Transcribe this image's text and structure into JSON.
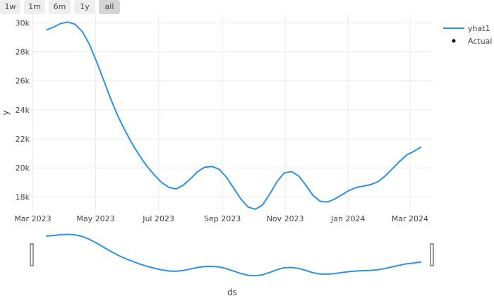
{
  "range_selector": {
    "buttons": [
      {
        "label": "1w",
        "active": false
      },
      {
        "label": "1m",
        "active": false
      },
      {
        "label": "6m",
        "active": false
      },
      {
        "label": "1y",
        "active": false
      },
      {
        "label": "all",
        "active": true
      }
    ]
  },
  "chart_data": {
    "type": "line",
    "title": "",
    "xlabel": "ds",
    "ylabel": "y",
    "x_range": [
      "2023-02-28",
      "2024-03-23"
    ],
    "ylim": [
      17000,
      30600
    ],
    "x_ticks": [
      {
        "date": "2023-03-01",
        "label": "Mar 2023"
      },
      {
        "date": "2023-05-01",
        "label": "May 2023"
      },
      {
        "date": "2023-07-01",
        "label": "Jul 2023"
      },
      {
        "date": "2023-09-01",
        "label": "Sep 2023"
      },
      {
        "date": "2023-11-01",
        "label": "Nov 2023"
      },
      {
        "date": "2024-01-01",
        "label": "Jan 2024"
      },
      {
        "date": "2024-03-01",
        "label": "Mar 2024"
      }
    ],
    "y_ticks": [
      {
        "value": 18000,
        "label": "18k"
      },
      {
        "value": 20000,
        "label": "20k"
      },
      {
        "value": 22000,
        "label": "22k"
      },
      {
        "value": 24000,
        "label": "24k"
      },
      {
        "value": 26000,
        "label": "26k"
      },
      {
        "value": 28000,
        "label": "28k"
      },
      {
        "value": 30000,
        "label": "30k"
      }
    ],
    "grid": true,
    "legend_position": "right",
    "series": [
      {
        "name": "yhat1",
        "color": "#2d91e5",
        "points": [
          [
            "2023-03-14",
            29500
          ],
          [
            "2023-03-21",
            29700
          ],
          [
            "2023-03-28",
            29950
          ],
          [
            "2023-04-04",
            30050
          ],
          [
            "2023-04-11",
            29900
          ],
          [
            "2023-04-18",
            29400
          ],
          [
            "2023-04-25",
            28500
          ],
          [
            "2023-05-02",
            27300
          ],
          [
            "2023-05-09",
            26000
          ],
          [
            "2023-05-16",
            24700
          ],
          [
            "2023-05-23",
            23500
          ],
          [
            "2023-05-30",
            22500
          ],
          [
            "2023-06-06",
            21600
          ],
          [
            "2023-06-13",
            20800
          ],
          [
            "2023-06-20",
            20100
          ],
          [
            "2023-06-27",
            19500
          ],
          [
            "2023-07-04",
            19000
          ],
          [
            "2023-07-11",
            18650
          ],
          [
            "2023-07-18",
            18550
          ],
          [
            "2023-07-25",
            18800
          ],
          [
            "2023-08-01",
            19250
          ],
          [
            "2023-08-08",
            19750
          ],
          [
            "2023-08-15",
            20050
          ],
          [
            "2023-08-22",
            20100
          ],
          [
            "2023-08-29",
            19900
          ],
          [
            "2023-09-05",
            19350
          ],
          [
            "2023-09-12",
            18600
          ],
          [
            "2023-09-19",
            17850
          ],
          [
            "2023-09-26",
            17300
          ],
          [
            "2023-10-03",
            17150
          ],
          [
            "2023-10-10",
            17450
          ],
          [
            "2023-10-17",
            18200
          ],
          [
            "2023-10-24",
            19050
          ],
          [
            "2023-10-31",
            19650
          ],
          [
            "2023-11-07",
            19750
          ],
          [
            "2023-11-14",
            19450
          ],
          [
            "2023-11-21",
            18800
          ],
          [
            "2023-11-28",
            18100
          ],
          [
            "2023-12-05",
            17700
          ],
          [
            "2023-12-12",
            17650
          ],
          [
            "2023-12-19",
            17850
          ],
          [
            "2023-12-26",
            18150
          ],
          [
            "2024-01-02",
            18450
          ],
          [
            "2024-01-09",
            18650
          ],
          [
            "2024-01-16",
            18750
          ],
          [
            "2024-01-23",
            18850
          ],
          [
            "2024-01-30",
            19050
          ],
          [
            "2024-02-06",
            19450
          ],
          [
            "2024-02-13",
            19950
          ],
          [
            "2024-02-20",
            20450
          ],
          [
            "2024-02-27",
            20900
          ],
          [
            "2024-03-05",
            21150
          ],
          [
            "2024-03-12",
            21450
          ]
        ]
      },
      {
        "name": "Actual",
        "color": "#000000",
        "marker": "dot",
        "points": []
      }
    ],
    "range_slider": true
  }
}
